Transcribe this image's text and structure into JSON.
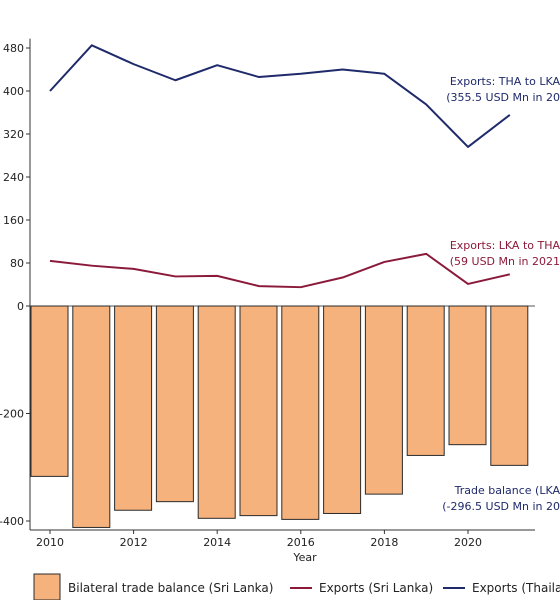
{
  "chart_data": {
    "type": "bar+line",
    "x": [
      2010,
      2011,
      2012,
      2013,
      2014,
      2015,
      2016,
      2017,
      2018,
      2019,
      2020,
      2021
    ],
    "xlabel": "Year",
    "ylabel": "",
    "ylim": [
      -410,
      490
    ],
    "yticks": [
      -400,
      -200,
      0,
      80,
      160,
      240,
      320,
      400,
      480
    ],
    "xticks": [
      2010,
      2012,
      2014,
      2016,
      2018,
      2020
    ],
    "series": [
      {
        "name": "Bilateral trade balance (Sri Lanka)",
        "type": "bar",
        "color": "#f5b27c",
        "values": [
          -317,
          -412,
          -380,
          -364,
          -395,
          -390,
          -397,
          -386,
          -350,
          -278,
          -258,
          -296.5
        ]
      },
      {
        "name": "Exports (Sri Lanka)",
        "type": "line",
        "color": "#8b1a3a",
        "values": [
          84,
          75,
          69,
          55,
          56,
          37,
          35,
          53,
          82,
          97,
          41,
          59
        ]
      },
      {
        "name": "Exports (Thailand)",
        "type": "line",
        "color": "#1f2a6b",
        "values": [
          400,
          485,
          450,
          420,
          448,
          426,
          432,
          440,
          432,
          375,
          296,
          355.5
        ]
      }
    ],
    "annotations": [
      {
        "series": "Exports (Thailand)",
        "lines": [
          "Exports: THA to LKA",
          "(355.5 USD Mn in 20"
        ]
      },
      {
        "series": "Exports (Sri Lanka)",
        "lines": [
          "Exports: LKA to THA",
          "(59 USD Mn in 2021"
        ]
      },
      {
        "series": "Bilateral trade balance (Sri Lanka)",
        "lines": [
          "Trade balance (LKA",
          "(-296.5 USD Mn in 20"
        ]
      }
    ],
    "legend": {
      "placement": "bottom",
      "items": [
        "Bilateral trade balance (Sri Lanka)",
        "Exports (Sri Lanka)",
        "Exports (Thaila"
      ]
    },
    "grid": false
  }
}
